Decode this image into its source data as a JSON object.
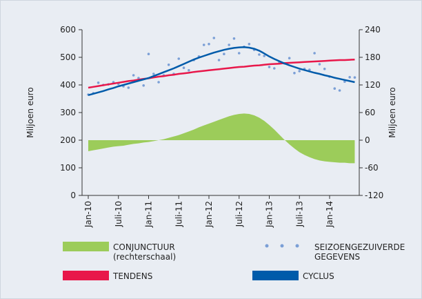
{
  "chart_data": {
    "type": "line",
    "y_label": "Miljoen euro",
    "y2_label": "Miljoen euro",
    "categories": [
      "Jan-10",
      null,
      null,
      null,
      null,
      null,
      "Juli-10",
      null,
      null,
      null,
      null,
      null,
      "Jan-11",
      null,
      null,
      null,
      null,
      null,
      "Juli-11",
      null,
      null,
      null,
      null,
      null,
      "Jan-12",
      null,
      null,
      null,
      null,
      null,
      "Juli-12",
      null,
      null,
      null,
      null,
      null,
      "Jan-13",
      null,
      null,
      null,
      null,
      null,
      "Juli-13",
      null,
      null,
      null,
      null,
      null,
      "Jan-14",
      null,
      null,
      null,
      null,
      null
    ],
    "ylim": [
      0,
      600
    ],
    "yticks": [
      0,
      100,
      200,
      300,
      400,
      500,
      600
    ],
    "y2lim": [
      -120,
      240
    ],
    "y2ticks": [
      -120,
      -60,
      0,
      60,
      120,
      180,
      240
    ],
    "series": [
      {
        "name": "CONJUNCTUUR (rechterschaal)",
        "type": "area",
        "axis": "y2",
        "color": "#9ccc5a",
        "values": [
          -24,
          -22,
          -20,
          -18,
          -16,
          -14,
          -13,
          -12,
          -10,
          -8,
          -7,
          -5,
          -4,
          -2,
          0,
          2,
          5,
          8,
          11,
          15,
          19,
          23,
          28,
          32,
          36,
          40,
          44,
          48,
          52,
          55,
          57,
          58,
          57,
          54,
          49,
          42,
          33,
          23,
          12,
          1,
          -9,
          -18,
          -26,
          -32,
          -37,
          -41,
          -44,
          -46,
          -47,
          -48,
          -49,
          -49,
          -50,
          -50
        ]
      },
      {
        "name": "SEIZOENGEZUIVERDE GEGEVENS",
        "type": "scatter",
        "color": "#7b9fd6",
        "values": [
          365,
          370,
          408,
          400,
          402,
          410,
          404,
          395,
          390,
          435,
          425,
          398,
          512,
          440,
          410,
          435,
          473,
          440,
          495,
          462,
          453,
          490,
          503,
          545,
          548,
          570,
          490,
          512,
          545,
          568,
          515,
          538,
          548,
          527,
          510,
          505,
          465,
          460,
          482,
          478,
          497,
          443,
          450,
          458,
          455,
          515,
          475,
          458,
          430,
          387,
          380,
          412,
          428,
          427
        ]
      },
      {
        "name": "TENDENS",
        "type": "line",
        "color": "#e8174a",
        "values": [
          390,
          393,
          396,
          399,
          402,
          405,
          408,
          411,
          414,
          416,
          419,
          422,
          424,
          427,
          430,
          432,
          435,
          437,
          440,
          442,
          444,
          447,
          449,
          451,
          453,
          455,
          457,
          459,
          461,
          463,
          465,
          466,
          468,
          470,
          471,
          473,
          475,
          476,
          477,
          479,
          480,
          481,
          482,
          483,
          484,
          485,
          486,
          487,
          488,
          489,
          490,
          490,
          491,
          492
        ]
      },
      {
        "name": "CYCLUS",
        "type": "line",
        "color": "#005baa",
        "values": [
          363,
          368,
          373,
          378,
          384,
          389,
          395,
          400,
          405,
          410,
          415,
          420,
          425,
          432,
          439,
          446,
          453,
          460,
          468,
          476,
          484,
          492,
          499,
          505,
          511,
          517,
          522,
          527,
          531,
          534,
          536,
          537,
          535,
          531,
          524,
          514,
          503,
          494,
          486,
          478,
          471,
          465,
          459,
          454,
          449,
          444,
          440,
          435,
          431,
          426,
          422,
          418,
          414,
          410
        ]
      }
    ]
  }
}
